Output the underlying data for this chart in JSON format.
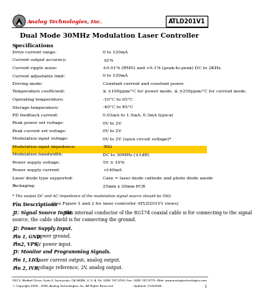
{
  "title": "Dual Mode 30MHz Modulation Laser Controller",
  "part_number": "ATLD201V1",
  "company": "Analog Technologies, Inc.",
  "specs_header": "Specifications",
  "specs": [
    [
      "Drive current range:",
      "0 to 120mA"
    ],
    [
      "Current output accuracy:",
      "±2%"
    ],
    [
      "Current ripple noise:",
      "±0.01% (RMS) and <0.1% (peak-to-peak) DC to 2KHz."
    ],
    [
      "Current adjustable limit:",
      "0 to 120mA"
    ],
    [
      "Driving mode:",
      "Constant current and constant power"
    ],
    [
      "Temperature coefficient:",
      "≤ ±100ppm/°C for power mode, ≤ ±250ppm/°C for current mode."
    ],
    [
      "Operating temperature:",
      "-10°C to 65°C"
    ],
    [
      "Storage temperature:",
      "-40°C to 85°C"
    ],
    [
      "PD feedback current:",
      "0.02mA to 1.5mA, 0.3mA typical"
    ],
    [
      "Peak power set voltage:",
      "0V to 2V"
    ],
    [
      "Peak current set voltage:",
      "0V to 2V"
    ],
    [
      "Modulation input voltage:",
      "0V to 2V (open circuit voltage)*"
    ],
    [
      "Modulation input impedance:",
      "50Ω"
    ],
    [
      "Modulation bandwidth:",
      "DC to 30MHz (±1dB)"
    ],
    [
      "Power supply voltage:",
      "5V ± 10%"
    ],
    [
      "Power supply current:",
      "<140mA"
    ],
    [
      "Laser diode type supported:",
      "Case = laser diode cathode and photo diode anode"
    ],
    [
      "Packaging:",
      "25mm x 20mm PCB"
    ]
  ],
  "footnote": "* The output DC and AC impedance of the modulation signal source should be 50Ω.",
  "pin_desc_header": "Pin Descriptions",
  "pin_desc_intro": "(See Figure 1 and 2 for laser controller ATLD201V1 views)",
  "pin_sections": [
    {
      "header": "J1: Signal Source Input.",
      "bold_italic": true,
      "text": " The internal conductor of the RG174 coaxial cable is for connecting to the signal",
      "text2": "source, the cable shield is for connecting the ground."
    },
    {
      "header": "J2: Power Supply Input.",
      "bold_italic": true,
      "text": "",
      "text2": ""
    },
    {
      "header": "Pin 1, GND,",
      "bold_italic": true,
      "text": " power ground.",
      "text2": ""
    },
    {
      "header": "Pin2, VPS,",
      "bold_italic": true,
      "text": " 5V power input.",
      "text2": ""
    },
    {
      "header": "J3: Monitor and Programming Signals.",
      "bold_italic": true,
      "text": "",
      "text2": ""
    },
    {
      "header": "Pin 1, LIO,",
      "bold_italic": true,
      "text": " laser current output, analog output.",
      "text2": ""
    },
    {
      "header": "Pin 2, IVR,",
      "bold_italic": true,
      "text": " voltage reference, 2V, analog output.",
      "text2": ""
    }
  ],
  "footer_address": "500 S. Wedbell Drive, Suite 4, Sunnyvale, CA 94086, U. S. A. Tel: (408) 747-9763, Fax: (408) 747-9775, Web: www.analogtechnologies.com",
  "footer_copyright": "© Copyright 2000 - 2004, Analog Technologies, Inc. All Rights Reserved",
  "footer_updated": "Updated: 1/14/2004",
  "footer_page": "1",
  "highlight_row": 13,
  "bg_color": "#ffffff",
  "highlight_color": "#ffcc00",
  "company_color": "#cc0000",
  "logo_color": "#333333"
}
